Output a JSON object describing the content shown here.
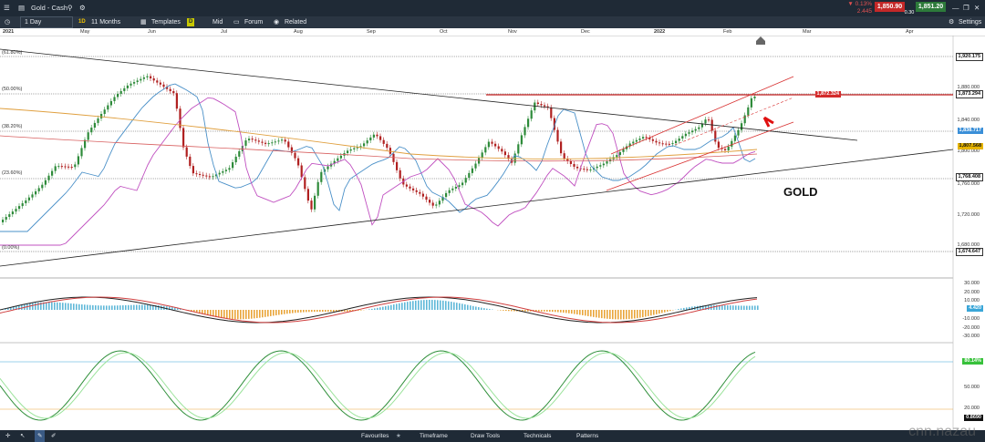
{
  "window": {
    "title": "Gold - Cash"
  },
  "toolbar": {
    "interval": "1 Day",
    "range_badge": "1D",
    "range": "11 Months",
    "templates": "Templates",
    "mid_badge": "D",
    "mid": "Mid",
    "forum": "Forum",
    "related": "Related",
    "settings": "Settings"
  },
  "quotes": {
    "change_pct": "▼ 0.13%",
    "change_abs": "2.445",
    "sell": "1,850.90",
    "spread": "0.30",
    "buy": "1,851.20"
  },
  "time_axis": {
    "labels": [
      "2021",
      "May",
      "Jun",
      "Jul",
      "Aug",
      "Sep",
      "Oct",
      "Nov",
      "Dec",
      "2022",
      "Feb",
      "Mar",
      "Apr"
    ]
  },
  "fib_levels": [
    "(61.80%)",
    "(50.00%)",
    "(38.20%)",
    "(23.60%)",
    "(0.00%)"
  ],
  "price_axis": {
    "labels": [
      "1,880.000",
      "1,840.000",
      "1,800.000",
      "1,760.000",
      "1,720.000",
      "1,680.000"
    ],
    "markers": {
      "top": "1,920.175",
      "fib50": "1,873.294",
      "red_line": "1,872.324",
      "blue": "1,838.717",
      "orange": "1,807.568",
      "fib23": "1,768.408",
      "fib0": "1,674.647"
    }
  },
  "macd_axis": {
    "labels": [
      "30.000",
      "20.000",
      "10.000",
      "-10.000",
      "-20.000",
      "-30.000"
    ],
    "marker": "4.420"
  },
  "stoch_axis": {
    "labels": [
      "50.000",
      "20.000"
    ],
    "marker": "80.14%",
    "bottom": "0.8690"
  },
  "annotation": {
    "label": "GOLD"
  },
  "bottombar": {
    "favourites": "Favourites",
    "timeframe": "Timeframe",
    "draw_tools": "Draw Tools",
    "technicals": "Technicals",
    "patterns": "Patterns"
  },
  "watermark": "cnn.nazau",
  "colors": {
    "up_candle": "#2e8b3a",
    "down_candle": "#b02020",
    "titlebar": "#1f2a36",
    "toolbar": "#2a3542",
    "macd_hist_pos": "#5fb8d8",
    "macd_hist_neg": "#e9a53a",
    "stoch_k": "#2f8f3a",
    "stoch_d": "#9be39b"
  }
}
